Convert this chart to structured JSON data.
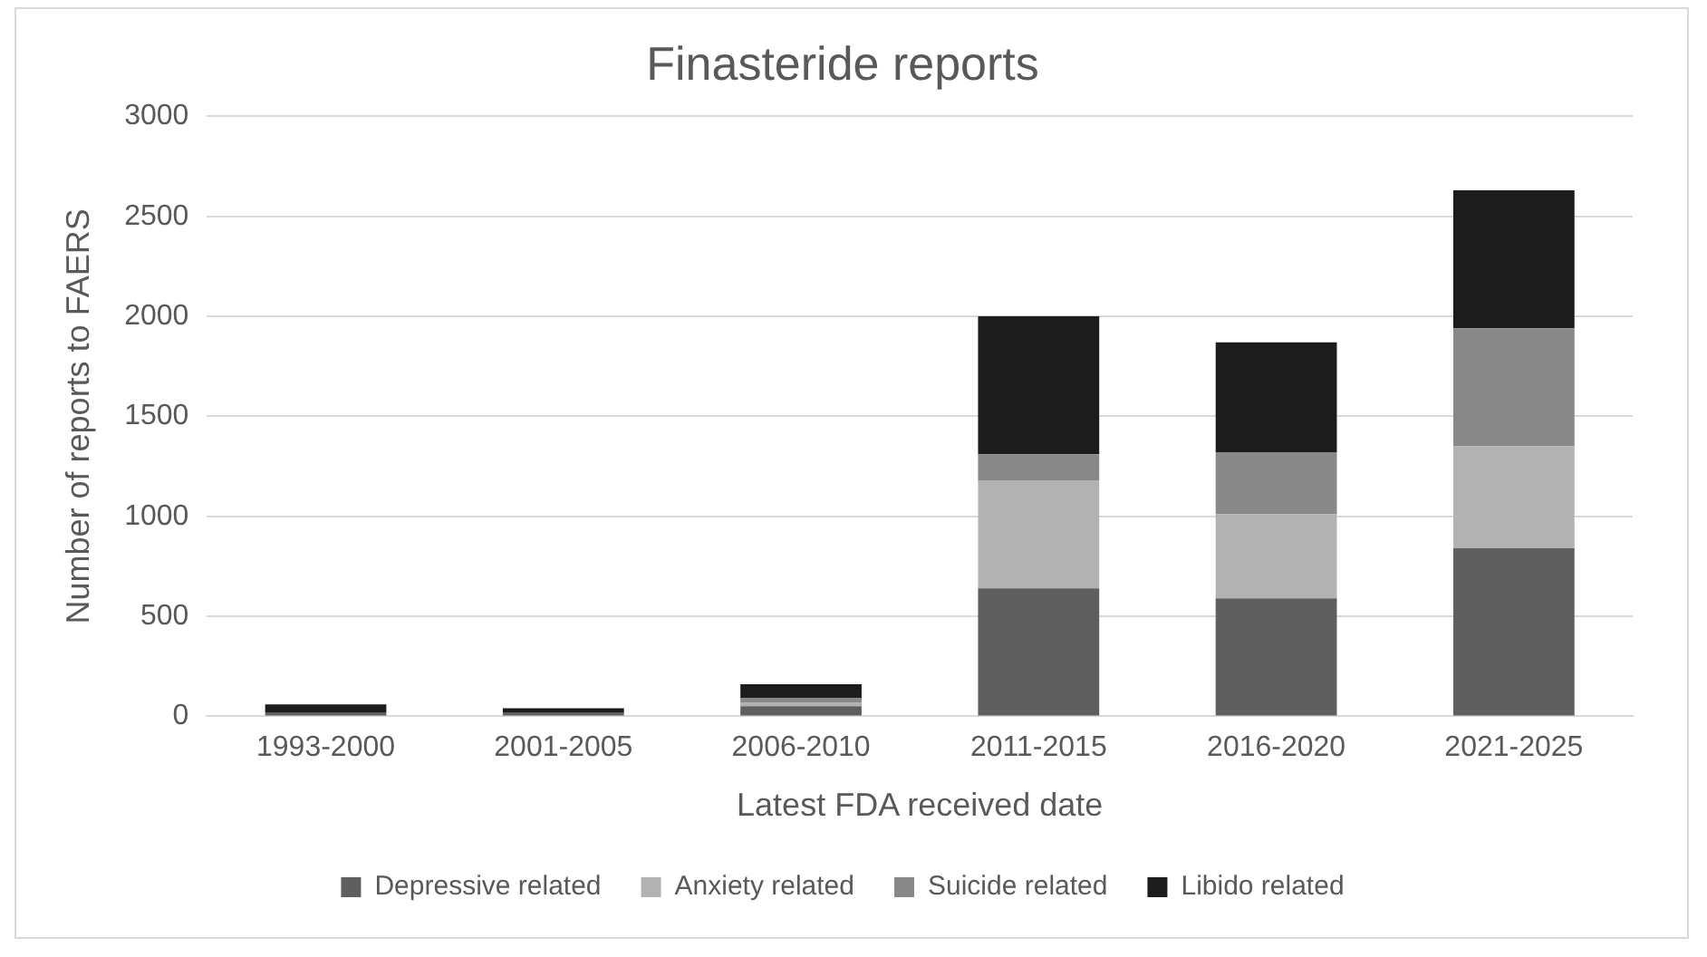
{
  "chart_data": {
    "type": "bar",
    "title": "Finasteride reports",
    "xlabel": "Latest FDA received date",
    "ylabel": "Number of reports to FAERS",
    "categories": [
      "1993-2000",
      "2001-2005",
      "2006-2010",
      "2011-2015",
      "2016-2020",
      "2021-2025"
    ],
    "series": [
      {
        "name": "Depressive related",
        "color": "#5f5f5f",
        "values": [
          20,
          20,
          50,
          640,
          590,
          840
        ]
      },
      {
        "name": "Anxiety related",
        "color": "#b2b2b2",
        "values": [
          null,
          null,
          20,
          540,
          420,
          510
        ]
      },
      {
        "name": "Suicide related",
        "color": "#888888",
        "values": [
          null,
          null,
          20,
          130,
          310,
          590
        ]
      },
      {
        "name": "Libido related",
        "color": "#1c1c1c",
        "values": [
          40,
          20,
          70,
          690,
          550,
          690
        ]
      }
    ],
    "stacked": true,
    "ylim": [
      0,
      3000
    ],
    "yticks": [
      0,
      500,
      1000,
      1500,
      2000,
      2500,
      3000
    ],
    "grid": "y",
    "legend": "bottom"
  }
}
